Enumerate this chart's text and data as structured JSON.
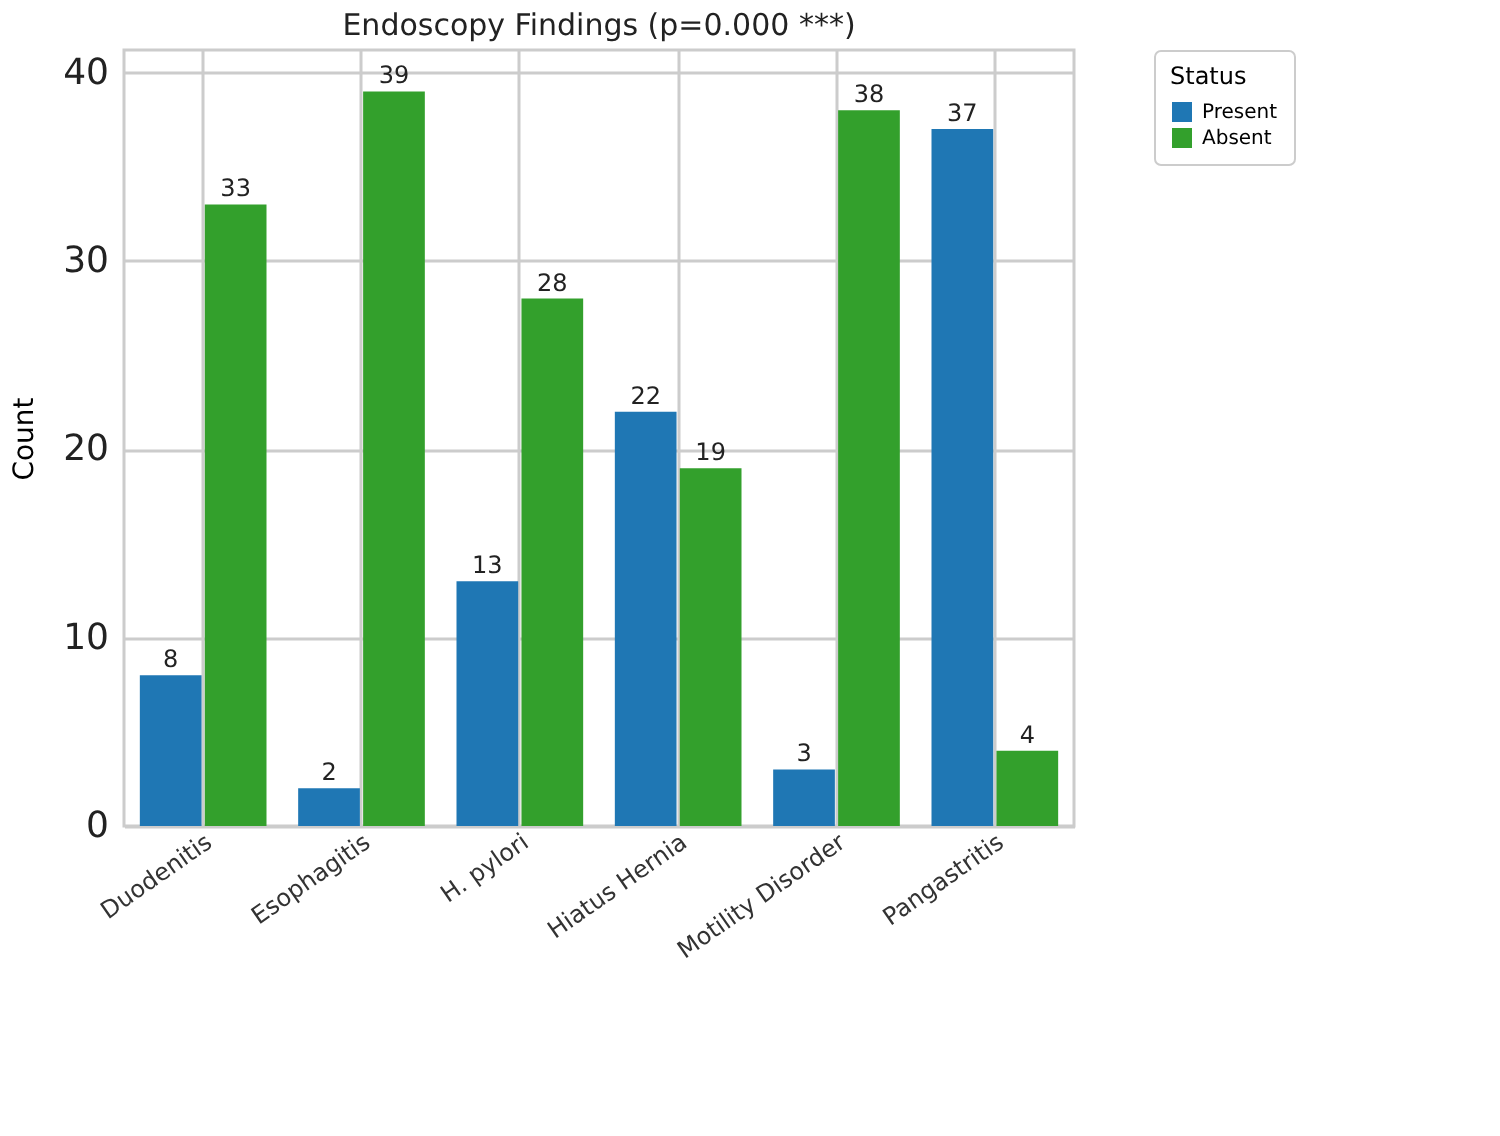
{
  "chart_data": {
    "type": "bar",
    "title": "Endoscopy Findings (p=0.000 ***)",
    "ylabel": "Count",
    "legend_title": "Status",
    "categories": [
      "Duodenitis",
      "Esophagitis",
      "H. pylori",
      "Hiatus Hernia",
      "Motility Disorder",
      "Pangastritis"
    ],
    "series": [
      {
        "name": "Present",
        "color": "#1f77b4",
        "values": [
          8,
          2,
          13,
          22,
          3,
          37
        ]
      },
      {
        "name": "Absent",
        "color": "#33a02c",
        "values": [
          33,
          39,
          28,
          19,
          38,
          4
        ]
      }
    ],
    "ylim": [
      0,
      41.2
    ],
    "yticks": [
      0,
      10,
      20,
      30,
      40
    ],
    "grid": true,
    "legend": "top right",
    "data_labels": true
  }
}
